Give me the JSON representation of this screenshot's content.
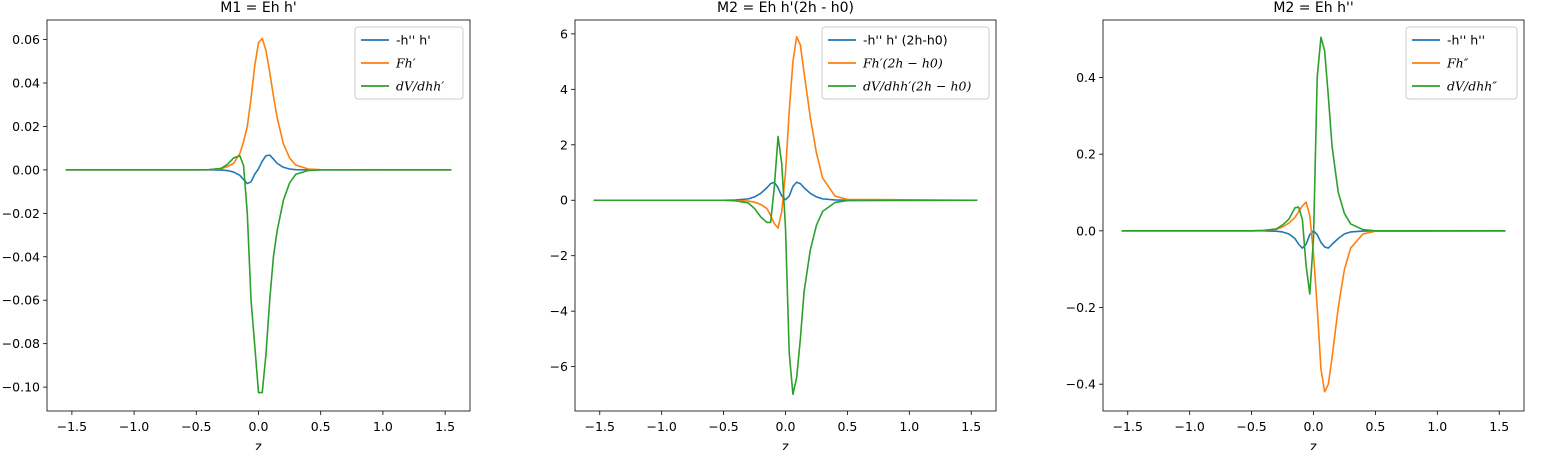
{
  "figure": {
    "background": "#ffffff"
  },
  "chart_data": [
    {
      "type": "line",
      "title": "M1 = Eh h'",
      "xlabel": "z",
      "ylabel": "",
      "xlim": [
        -1.7,
        1.7
      ],
      "ylim": [
        -0.111,
        0.069
      ],
      "xticks": [
        -1.5,
        -1.0,
        -0.5,
        0.0,
        0.5,
        1.0,
        1.5
      ],
      "xtick_labels": [
        "−1.5",
        "−1.0",
        "−0.5",
        "0.0",
        "0.5",
        "1.0",
        "1.5"
      ],
      "yticks": [
        0.06,
        0.04,
        0.02,
        0.0,
        -0.02,
        -0.04,
        -0.06,
        -0.08,
        -0.1
      ],
      "ytick_labels": [
        "0.06",
        "0.04",
        "0.02",
        "0.00",
        "−0.02",
        "−0.04",
        "−0.06",
        "−0.08",
        "−0.10"
      ],
      "legend_position": "top-right",
      "grid": false,
      "x": [
        -1.55,
        -0.5,
        -0.4,
        -0.3,
        -0.25,
        -0.2,
        -0.15,
        -0.12,
        -0.09,
        -0.06,
        -0.03,
        0.0,
        0.03,
        0.06,
        0.09,
        0.12,
        0.15,
        0.2,
        0.25,
        0.3,
        0.4,
        0.5,
        1.55
      ],
      "series": [
        {
          "name": "-h'' h'",
          "color": "#1f77b4",
          "values": [
            0,
            0,
            0,
            -0.0001,
            -0.0003,
            -0.001,
            -0.0025,
            -0.0045,
            -0.0063,
            -0.0055,
            -0.002,
            0.0005,
            0.004,
            0.0065,
            0.0068,
            0.005,
            0.003,
            0.0012,
            0.0004,
            0.0001,
            0,
            0,
            0
          ]
        },
        {
          "name": "Fh′",
          "color": "#ff7f0e",
          "values": [
            0,
            0,
            0.0001,
            0.0005,
            0.0015,
            0.003,
            0.0075,
            0.013,
            0.02,
            0.033,
            0.048,
            0.0585,
            0.0605,
            0.055,
            0.045,
            0.034,
            0.024,
            0.012,
            0.0055,
            0.0022,
            0.0004,
            0.0001,
            0
          ]
        },
        {
          "name": "dV/dhh′",
          "color": "#2ca02c",
          "values": [
            0,
            0,
            0.0001,
            0.0007,
            0.0025,
            0.0055,
            0.0065,
            0.002,
            -0.02,
            -0.06,
            -0.081,
            -0.1025,
            -0.1025,
            -0.085,
            -0.06,
            -0.04,
            -0.028,
            -0.014,
            -0.006,
            -0.002,
            -0.0003,
            0,
            0
          ]
        }
      ]
    },
    {
      "type": "line",
      "title": "M2 = Eh h'(2h - h0)",
      "xlabel": "z",
      "ylabel": "",
      "xlim": [
        -1.7,
        1.7
      ],
      "ylim": [
        -7.6,
        6.5
      ],
      "xticks": [
        -1.5,
        -1.0,
        -0.5,
        0.0,
        0.5,
        1.0,
        1.5
      ],
      "xtick_labels": [
        "−1.5",
        "−1.0",
        "−0.5",
        "0.0",
        "0.5",
        "1.0",
        "1.5"
      ],
      "yticks": [
        6,
        4,
        2,
        0,
        -2,
        -4,
        -6
      ],
      "ytick_labels": [
        "6",
        "4",
        "2",
        "0",
        "−2",
        "−4",
        "−6"
      ],
      "legend_position": "top-right",
      "grid": false,
      "x": [
        -1.55,
        -0.5,
        -0.4,
        -0.3,
        -0.25,
        -0.2,
        -0.15,
        -0.12,
        -0.09,
        -0.06,
        -0.03,
        0.0,
        0.03,
        0.06,
        0.09,
        0.12,
        0.15,
        0.2,
        0.25,
        0.3,
        0.4,
        0.5,
        1.55
      ],
      "series": [
        {
          "name": "-h'' h' (2h-h0)",
          "color": "#1f77b4",
          "values": [
            0,
            0,
            0.01,
            0.05,
            0.12,
            0.25,
            0.45,
            0.6,
            0.65,
            0.45,
            0.15,
            0.02,
            0.15,
            0.5,
            0.65,
            0.6,
            0.45,
            0.25,
            0.12,
            0.05,
            0.01,
            0,
            0
          ]
        },
        {
          "name": "Fh′(2h − h0)",
          "color": "#ff7f0e",
          "values": [
            0,
            0,
            -0.01,
            -0.03,
            -0.07,
            -0.15,
            -0.3,
            -0.55,
            -0.85,
            -1.0,
            -0.4,
            1.0,
            3.2,
            5.0,
            5.9,
            5.6,
            4.6,
            3.0,
            1.7,
            0.8,
            0.15,
            0.03,
            0
          ]
        },
        {
          "name": "dV/dhh′(2h − h0)",
          "color": "#2ca02c",
          "values": [
            0,
            0,
            -0.02,
            -0.1,
            -0.3,
            -0.6,
            -0.8,
            -0.8,
            0.5,
            2.3,
            1.3,
            -1.0,
            -5.5,
            -7.0,
            -6.4,
            -5.0,
            -3.3,
            -1.8,
            -0.9,
            -0.4,
            -0.08,
            -0.01,
            0
          ]
        }
      ]
    },
    {
      "type": "line",
      "title": "M2 = Eh h''",
      "xlabel": "z",
      "ylabel": "",
      "xlim": [
        -1.7,
        1.7
      ],
      "ylim": [
        -0.47,
        0.55
      ],
      "xticks": [
        -1.5,
        -1.0,
        -0.5,
        0.0,
        0.5,
        1.0,
        1.5
      ],
      "xtick_labels": [
        "−1.5",
        "−1.0",
        "−0.5",
        "0.0",
        "0.5",
        "1.0",
        "1.5"
      ],
      "yticks": [
        0.4,
        0.2,
        0.0,
        -0.2,
        -0.4
      ],
      "ytick_labels": [
        "0.4",
        "0.2",
        "0.0",
        "−0.2",
        "−0.4"
      ],
      "legend_position": "top-right",
      "grid": false,
      "x": [
        -1.55,
        -0.5,
        -0.4,
        -0.3,
        -0.25,
        -0.2,
        -0.15,
        -0.12,
        -0.09,
        -0.06,
        -0.03,
        0.0,
        0.03,
        0.06,
        0.09,
        0.12,
        0.15,
        0.2,
        0.25,
        0.3,
        0.4,
        0.5,
        1.55
      ],
      "series": [
        {
          "name": "-h'' h''",
          "color": "#1f77b4",
          "values": [
            0,
            0,
            0,
            -0.001,
            -0.003,
            -0.008,
            -0.02,
            -0.035,
            -0.045,
            -0.035,
            -0.01,
            0.0,
            -0.01,
            -0.03,
            -0.042,
            -0.045,
            -0.035,
            -0.02,
            -0.008,
            -0.003,
            -0.0005,
            0,
            0
          ]
        },
        {
          "name": "Fh″",
          "color": "#ff7f0e",
          "values": [
            0,
            0,
            0.001,
            0.004,
            0.01,
            0.02,
            0.035,
            0.05,
            0.065,
            0.075,
            0.04,
            -0.06,
            -0.2,
            -0.36,
            -0.42,
            -0.4,
            -0.33,
            -0.2,
            -0.1,
            -0.045,
            -0.008,
            -0.001,
            0
          ]
        },
        {
          "name": "dV/dhh″",
          "color": "#2ca02c",
          "values": [
            0,
            0,
            0.001,
            0.005,
            0.015,
            0.03,
            0.06,
            0.062,
            0.03,
            -0.09,
            -0.165,
            -0.02,
            0.4,
            0.505,
            0.47,
            0.35,
            0.22,
            0.1,
            0.045,
            0.018,
            0.003,
            0,
            0
          ]
        }
      ]
    }
  ]
}
